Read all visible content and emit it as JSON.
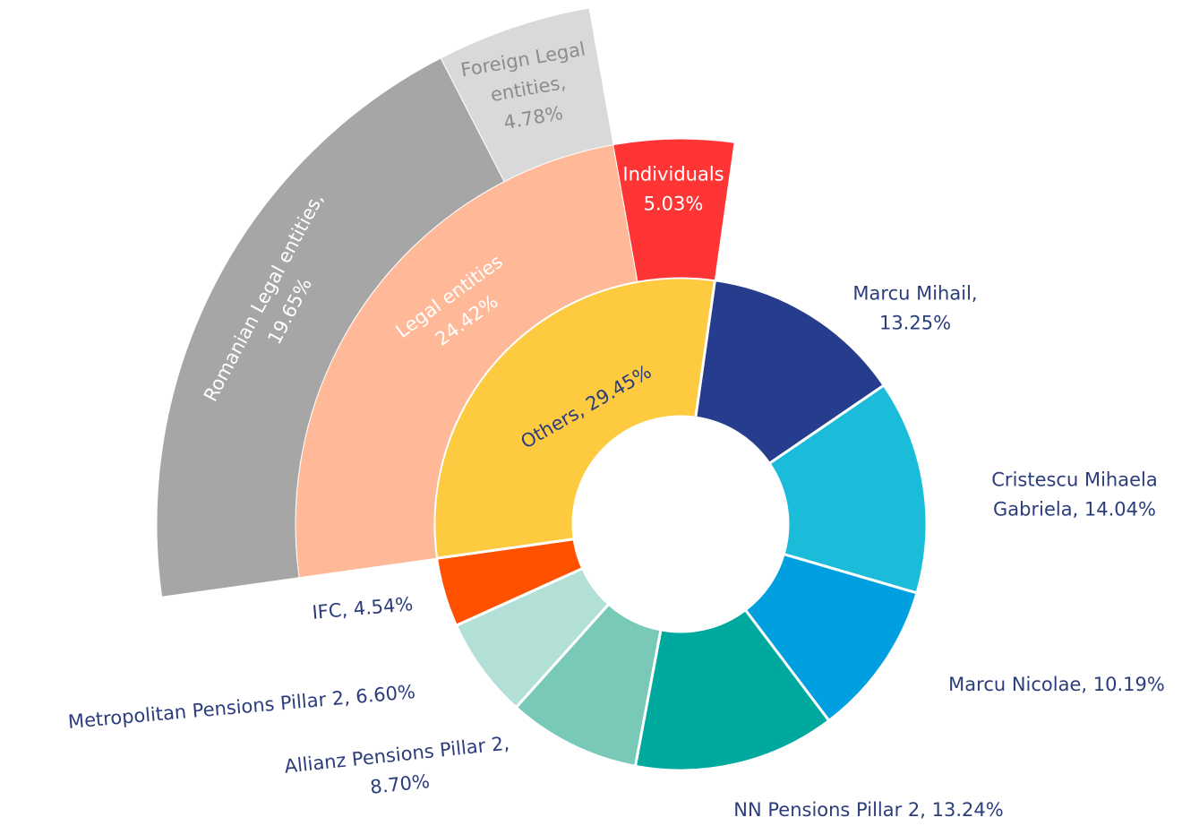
{
  "chart_data": {
    "type": "sunburst",
    "rings": [
      {
        "segments": [
          {
            "label_lines": [
              "Marcu Mihail,",
              "13.25%"
            ],
            "value": 13.25,
            "color": "#253d8c"
          },
          {
            "label_lines": [
              "Cristescu Mihaela",
              "Gabriela, 14.04%"
            ],
            "value": 14.04,
            "color": "#1bbcd9"
          },
          {
            "label_lines": [
              "Marcu Nicolae, 10.19%"
            ],
            "value": 10.19,
            "color": "#009fe0"
          },
          {
            "label_lines": [
              "NN Pensions Pillar 2, 13.24%"
            ],
            "value": 13.24,
            "color": "#00a99d"
          },
          {
            "label_lines": [
              "Allianz Pensions Pillar 2,",
              "8.70%"
            ],
            "value": 8.7,
            "color": "#78c9b7"
          },
          {
            "label_lines": [
              "Metropolitan Pensions Pillar 2, 6.60%"
            ],
            "value": 6.6,
            "color": "#b3e0d6"
          },
          {
            "label_lines": [
              "IFC, 4.54%"
            ],
            "value": 4.54,
            "color": "#ff5100"
          },
          {
            "label_lines": [
              "Others, 29.45%"
            ],
            "value": 29.45,
            "color": "#fdca40"
          }
        ]
      },
      {
        "segments": [
          {
            "label_lines": [
              "Legal entities",
              "24.42%"
            ],
            "value": 24.42,
            "color": "#ffb999"
          },
          {
            "label_lines": [
              "Individuals",
              "5.03%"
            ],
            "value": 5.03,
            "color": "#ff3535"
          }
        ]
      },
      {
        "segments": [
          {
            "label_lines": [
              "Romanian Legal entities,",
              "19.65%"
            ],
            "value": 19.65,
            "color": "#a6a6a6"
          },
          {
            "label_lines": [
              "Foreign Legal",
              "entities,",
              "4.78%"
            ],
            "value": 4.78,
            "color": "#d9d9d9"
          }
        ]
      }
    ]
  }
}
